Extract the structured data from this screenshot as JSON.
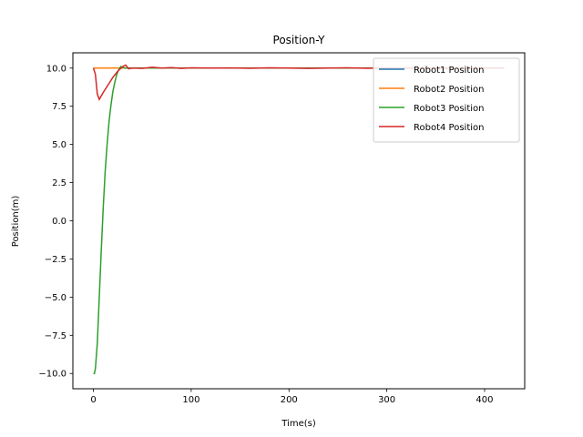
{
  "chart_data": {
    "type": "line",
    "title": "Position-Y",
    "xlabel": "Time(s)",
    "ylabel": "Position(m)",
    "xlim": [
      -21,
      441
    ],
    "ylim": [
      -11,
      11
    ],
    "xticks": [
      0,
      100,
      200,
      300,
      400
    ],
    "yticks": [
      -10.0,
      -7.5,
      -5.0,
      -2.5,
      0.0,
      2.5,
      5.0,
      7.5,
      10.0
    ],
    "xtick_labels": [
      "0",
      "100",
      "200",
      "300",
      "400"
    ],
    "ytick_labels": [
      "−10.0",
      "−7.5",
      "−5.0",
      "−2.5",
      "0.0",
      "2.5",
      "5.0",
      "7.5",
      "10.0"
    ],
    "grid": false,
    "legend_position": "top-right",
    "series": [
      {
        "name": "Robot1 Position",
        "color": "#1f77b4",
        "x": [
          0,
          10,
          20,
          30,
          40,
          60,
          80,
          100,
          150,
          200,
          250,
          300,
          350,
          400,
          420
        ],
        "y": [
          10.0,
          10.0,
          10.0,
          10.0,
          10.0,
          10.0,
          10.0,
          10.0,
          10.0,
          10.0,
          10.0,
          10.0,
          10.0,
          10.0,
          10.0
        ]
      },
      {
        "name": "Robot2 Position",
        "color": "#ff7f0e",
        "x": [
          0,
          10,
          20,
          30,
          40,
          60,
          80,
          100,
          150,
          200,
          250,
          300,
          350,
          400,
          420
        ],
        "y": [
          10.0,
          10.0,
          10.0,
          10.0,
          10.0,
          10.0,
          10.0,
          10.0,
          10.0,
          10.0,
          10.0,
          10.0,
          10.0,
          10.0,
          10.0
        ]
      },
      {
        "name": "Robot3 Position",
        "color": "#2ca02c",
        "x": [
          0,
          1,
          2,
          4,
          6,
          8,
          10,
          12,
          14,
          16,
          18,
          20,
          22,
          24,
          26,
          28,
          30,
          32,
          35,
          40,
          60,
          80,
          100,
          150,
          200,
          250,
          300,
          350,
          400,
          420
        ],
        "y": [
          -10.0,
          -10.0,
          -9.7,
          -8.0,
          -5.0,
          -2.0,
          0.8,
          3.2,
          5.0,
          6.5,
          7.6,
          8.5,
          9.1,
          9.6,
          9.9,
          10.1,
          10.05,
          10.0,
          10.0,
          10.0,
          10.0,
          10.0,
          10.0,
          10.0,
          10.0,
          10.0,
          10.0,
          10.0,
          10.0,
          10.0
        ]
      },
      {
        "name": "Robot4 Position",
        "color": "#d62728",
        "x": [
          0,
          2,
          4,
          6,
          10,
          15,
          20,
          25,
          30,
          33,
          36,
          40,
          50,
          60,
          70,
          80,
          90,
          100,
          120,
          140,
          160,
          180,
          200,
          220,
          240,
          260,
          280,
          300,
          320,
          340,
          360,
          380,
          400,
          420
        ],
        "y": [
          10.0,
          9.6,
          8.3,
          7.95,
          8.4,
          8.9,
          9.4,
          9.8,
          10.1,
          10.2,
          9.95,
          10.0,
          9.98,
          10.05,
          10.0,
          10.03,
          9.98,
          10.02,
          10.0,
          10.01,
          9.99,
          10.02,
          10.0,
          9.98,
          10.0,
          10.02,
          9.99,
          10.01,
          10.0,
          10.02,
          9.98,
          10.0,
          10.01,
          10.0
        ]
      }
    ]
  }
}
